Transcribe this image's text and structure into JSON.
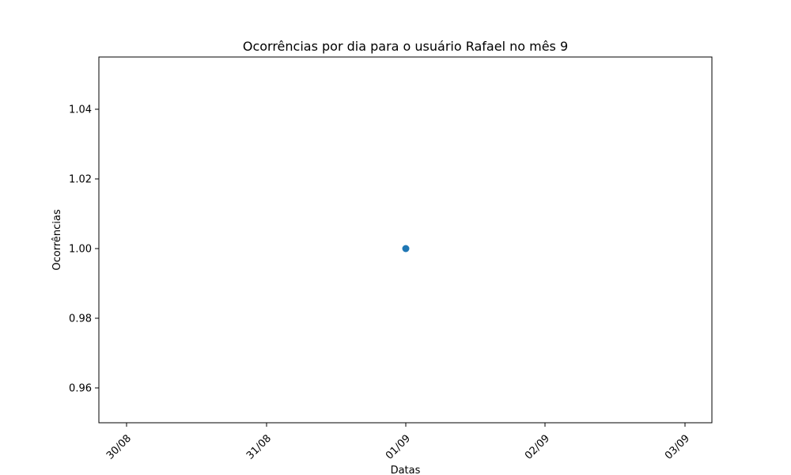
{
  "chart_data": {
    "type": "scatter",
    "title": "Ocorrências por dia para o usuário Rafael no mês 9",
    "xlabel": "Datas",
    "ylabel": "Ocorrências",
    "x_ticks": [
      "30/08",
      "31/08",
      "01/09",
      "02/09",
      "03/09"
    ],
    "y_ticks": [
      "0.96",
      "0.98",
      "1.00",
      "1.02",
      "1.04"
    ],
    "xlim": [
      "2024-08-29T19:12",
      "2024-09-03T04:48"
    ],
    "ylim": [
      0.95,
      1.055
    ],
    "grid": false,
    "legend": "none",
    "series": [
      {
        "color": "#1f77b4",
        "points": [
          {
            "x": "01/09",
            "y": 1.0
          }
        ]
      }
    ]
  }
}
